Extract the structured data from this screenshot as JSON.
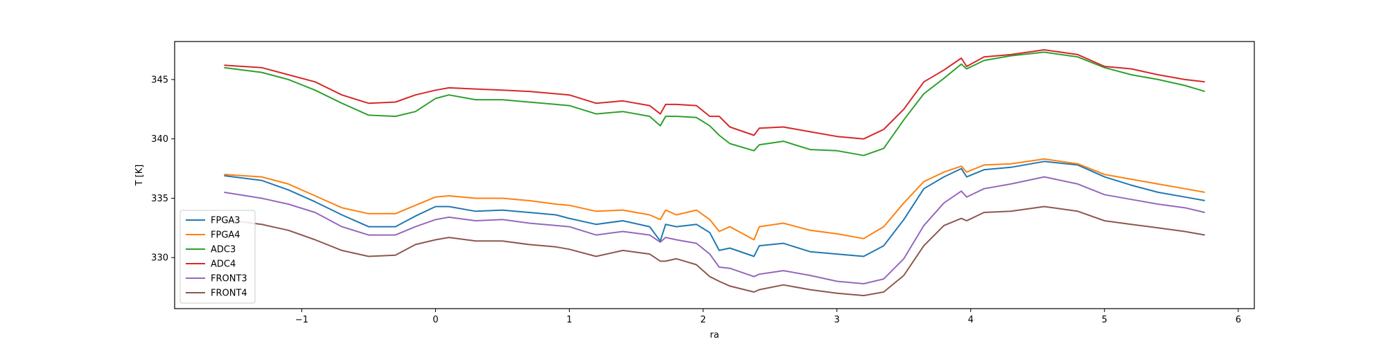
{
  "chart_data": {
    "type": "line",
    "title": "",
    "xlabel": "ra",
    "ylabel": "T [K]",
    "xlim": [
      -1.95,
      6.12
    ],
    "ylim": [
      325.7,
      348.2
    ],
    "xticks": [
      -1,
      0,
      1,
      2,
      3,
      4,
      5,
      6
    ],
    "xtick_labels": [
      "−1",
      "0",
      "1",
      "2",
      "3",
      "4",
      "5",
      "6"
    ],
    "yticks": [
      330,
      335,
      340,
      345
    ],
    "ytick_labels": [
      "330",
      "335",
      "340",
      "345"
    ],
    "grid": false,
    "legend_position": "lower-left",
    "x": [
      -1.58,
      -1.3,
      -1.1,
      -0.9,
      -0.7,
      -0.5,
      -0.3,
      -0.15,
      0,
      0.1,
      0.3,
      0.5,
      0.7,
      0.9,
      1.0,
      1.2,
      1.4,
      1.6,
      1.68,
      1.72,
      1.8,
      1.95,
      2.05,
      2.12,
      2.2,
      2.38,
      2.42,
      2.6,
      2.8,
      3.0,
      3.2,
      3.35,
      3.5,
      3.65,
      3.8,
      3.93,
      3.97,
      4.1,
      4.3,
      4.55,
      4.8,
      5.0,
      5.2,
      5.4,
      5.6,
      5.75
    ],
    "series": [
      {
        "name": "FPGA3",
        "color": "#1f77b4",
        "values": [
          336.9,
          336.5,
          335.7,
          334.7,
          333.6,
          332.6,
          332.6,
          333.5,
          334.3,
          334.3,
          333.9,
          334.0,
          333.8,
          333.6,
          333.3,
          332.8,
          333.1,
          332.6,
          331.4,
          332.8,
          332.6,
          332.8,
          332.1,
          330.6,
          330.8,
          330.1,
          331.0,
          331.2,
          330.5,
          330.3,
          330.1,
          331.0,
          333.2,
          335.8,
          336.8,
          337.5,
          336.8,
          337.4,
          337.6,
          338.1,
          337.8,
          336.8,
          336.1,
          335.5,
          335.1,
          334.8
        ]
      },
      {
        "name": "FPGA4",
        "color": "#ff7f0e",
        "values": [
          337.0,
          336.8,
          336.2,
          335.2,
          334.2,
          333.7,
          333.7,
          334.4,
          335.1,
          335.2,
          335.0,
          335.0,
          334.8,
          334.5,
          334.4,
          333.9,
          334.0,
          333.6,
          333.2,
          334.0,
          333.6,
          334.0,
          333.2,
          332.2,
          332.6,
          331.5,
          332.6,
          332.9,
          332.3,
          332.0,
          331.6,
          332.6,
          334.6,
          336.4,
          337.2,
          337.7,
          337.2,
          337.8,
          337.9,
          338.3,
          337.9,
          337.0,
          336.6,
          336.2,
          335.8,
          335.5
        ]
      },
      {
        "name": "ADC3",
        "color": "#2ca02c",
        "values": [
          346.0,
          345.6,
          345.0,
          344.1,
          343.0,
          342.0,
          341.9,
          342.3,
          343.4,
          343.7,
          343.3,
          343.3,
          343.1,
          342.9,
          342.8,
          342.1,
          342.3,
          341.9,
          341.1,
          341.9,
          341.9,
          341.8,
          341.1,
          340.3,
          339.6,
          339.0,
          339.5,
          339.8,
          339.1,
          339.0,
          338.6,
          339.2,
          341.6,
          343.8,
          345.1,
          346.3,
          345.9,
          346.6,
          347.0,
          347.3,
          346.9,
          346.0,
          345.4,
          345.0,
          344.5,
          344.0
        ]
      },
      {
        "name": "ADC4",
        "color": "#d62728",
        "values": [
          346.2,
          346.0,
          345.4,
          344.8,
          343.7,
          343.0,
          343.1,
          343.7,
          344.1,
          344.3,
          344.2,
          344.1,
          344.0,
          343.8,
          343.7,
          343.0,
          343.2,
          342.8,
          342.1,
          342.9,
          342.9,
          342.8,
          341.9,
          341.9,
          341.0,
          340.3,
          340.9,
          341.0,
          340.6,
          340.2,
          340.0,
          340.8,
          342.5,
          344.8,
          345.8,
          346.8,
          346.1,
          346.9,
          347.1,
          347.5,
          347.1,
          346.1,
          345.9,
          345.4,
          345.0,
          344.8
        ]
      },
      {
        "name": "FRONT3",
        "color": "#9467bd",
        "values": [
          335.5,
          335.0,
          334.5,
          333.8,
          332.6,
          331.9,
          331.9,
          332.6,
          333.2,
          333.4,
          333.1,
          333.2,
          332.9,
          332.7,
          332.6,
          331.9,
          332.2,
          331.9,
          331.3,
          331.7,
          331.5,
          331.2,
          330.3,
          329.2,
          329.1,
          328.4,
          328.6,
          328.9,
          328.5,
          328.0,
          327.8,
          328.2,
          329.9,
          332.7,
          334.6,
          335.6,
          335.1,
          335.8,
          336.2,
          336.8,
          336.2,
          335.3,
          334.9,
          334.5,
          334.2,
          333.8
        ]
      },
      {
        "name": "FRONT4",
        "color": "#8c564b",
        "values": [
          333.2,
          332.8,
          332.3,
          331.5,
          330.6,
          330.1,
          330.2,
          331.1,
          331.5,
          331.7,
          331.4,
          331.4,
          331.1,
          330.9,
          330.7,
          330.1,
          330.6,
          330.3,
          329.7,
          329.7,
          329.9,
          329.4,
          328.4,
          328.0,
          327.6,
          327.1,
          327.3,
          327.7,
          327.3,
          327.0,
          326.8,
          327.1,
          328.5,
          331.0,
          332.7,
          333.3,
          333.1,
          333.8,
          333.9,
          334.3,
          333.9,
          333.1,
          332.8,
          332.5,
          332.2,
          331.9
        ]
      }
    ]
  }
}
